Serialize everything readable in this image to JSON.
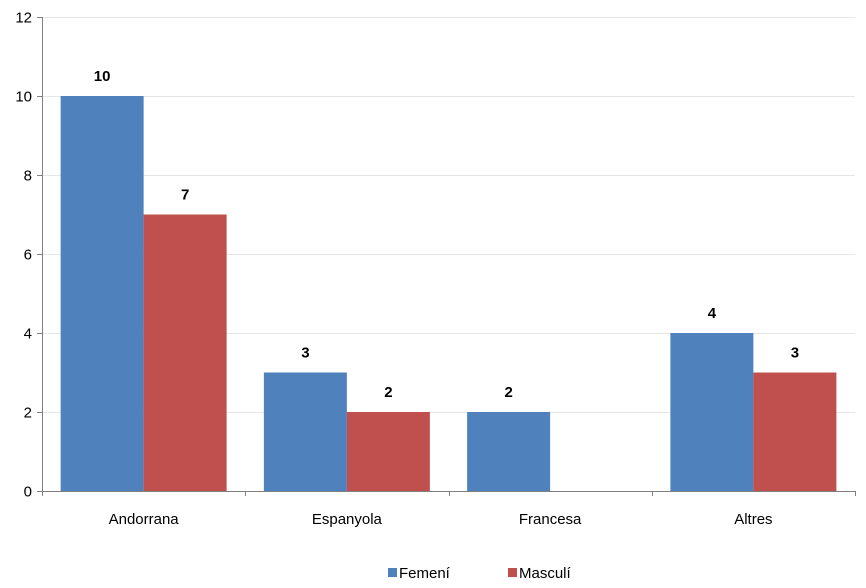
{
  "chart_data": {
    "type": "bar",
    "categories": [
      "Andorrana",
      "Espanyola",
      "Francesa",
      "Altres"
    ],
    "series": [
      {
        "name": "Femení",
        "values": [
          10,
          3,
          2,
          4
        ],
        "color": "#4F81BD"
      },
      {
        "name": "Masculí",
        "values": [
          7,
          2,
          null,
          3
        ],
        "color": "#C0504D"
      }
    ],
    "ylim": [
      0,
      12
    ],
    "yticks": [
      0,
      2,
      4,
      6,
      8,
      10,
      12
    ],
    "grid": true,
    "legend_position": "bottom-center",
    "data_labels": true
  }
}
